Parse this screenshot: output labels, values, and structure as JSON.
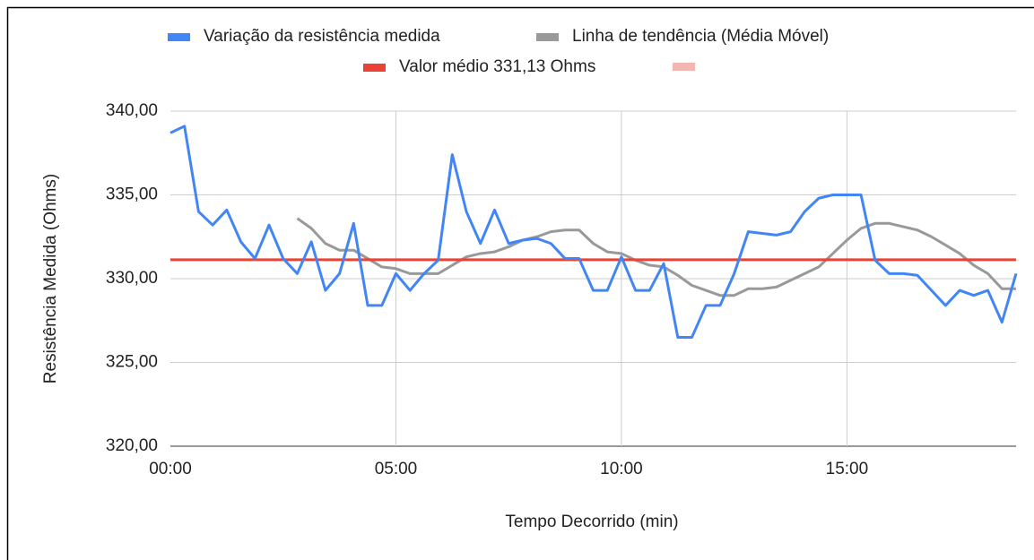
{
  "chart_data": {
    "type": "line",
    "x_label": "Tempo Decorrido (min)",
    "y_label": "Resistência Medida (Ohms)",
    "x": [
      0,
      0.3125,
      0.625,
      0.9375,
      1.25,
      1.5625,
      1.875,
      2.1875,
      2.5,
      2.8125,
      3.125,
      3.4375,
      3.75,
      4.0625,
      4.375,
      4.6875,
      5,
      5.3125,
      5.625,
      5.9375,
      6.25,
      6.5625,
      6.875,
      7.1875,
      7.5,
      7.8125,
      8.125,
      8.4375,
      8.75,
      9.0625,
      9.375,
      9.6875,
      10,
      10.3125,
      10.625,
      10.9375,
      11.25,
      11.5625,
      11.875,
      12.1875,
      12.5,
      12.8125,
      13.125,
      13.4375,
      13.75,
      14.0625,
      14.375,
      14.6875,
      15,
      15.3125,
      15.625,
      15.9375,
      16.25,
      16.5625,
      16.875,
      17.1875,
      17.5,
      17.8125,
      18.125,
      18.4375,
      18.75
    ],
    "series": [
      {
        "name": "Variação da resistência medida",
        "color": "#4285f4",
        "values": [
          338.7,
          339.1,
          334.0,
          333.2,
          334.1,
          332.2,
          331.2,
          333.2,
          331.2,
          330.3,
          332.2,
          329.3,
          330.3,
          333.3,
          328.4,
          328.4,
          330.3,
          329.3,
          330.3,
          331.1,
          337.4,
          334.0,
          332.1,
          334.1,
          332.1,
          332.3,
          332.4,
          332.1,
          331.2,
          331.2,
          329.3,
          329.3,
          331.3,
          329.3,
          329.3,
          330.9,
          326.5,
          326.5,
          328.4,
          328.4,
          330.3,
          332.8,
          332.7,
          332.6,
          332.8,
          334.0,
          334.8,
          335.0,
          335.0,
          335.0,
          331.1,
          330.3,
          330.3,
          330.2,
          329.3,
          328.4,
          329.3,
          329.0,
          329.3,
          327.4,
          330.3
        ]
      },
      {
        "name": "Linha de tendência (Média Móvel)",
        "color": "#999999",
        "values": [
          null,
          null,
          null,
          null,
          null,
          null,
          null,
          null,
          null,
          333.6,
          333.0,
          332.1,
          331.7,
          331.7,
          331.2,
          330.7,
          330.6,
          330.3,
          330.3,
          330.3,
          330.8,
          331.3,
          331.5,
          331.6,
          331.9,
          332.3,
          332.5,
          332.8,
          332.9,
          332.9,
          332.1,
          331.6,
          331.5,
          331.1,
          330.8,
          330.7,
          330.2,
          329.6,
          329.3,
          329.0,
          329.0,
          329.4,
          329.4,
          329.5,
          329.9,
          330.3,
          330.7,
          331.5,
          332.3,
          333.0,
          333.3,
          333.3,
          333.1,
          332.9,
          332.5,
          332.0,
          331.5,
          330.8,
          330.3,
          329.4,
          329.4
        ]
      },
      {
        "name": "Valor médio 331,13 Ohms",
        "color": "#ea4335",
        "values": [
          331.13,
          331.13,
          331.13,
          331.13,
          331.13,
          331.13,
          331.13,
          331.13,
          331.13,
          331.13,
          331.13,
          331.13,
          331.13,
          331.13,
          331.13,
          331.13,
          331.13,
          331.13,
          331.13,
          331.13,
          331.13,
          331.13,
          331.13,
          331.13,
          331.13,
          331.13,
          331.13,
          331.13,
          331.13,
          331.13,
          331.13,
          331.13,
          331.13,
          331.13,
          331.13,
          331.13,
          331.13,
          331.13,
          331.13,
          331.13,
          331.13,
          331.13,
          331.13,
          331.13,
          331.13,
          331.13,
          331.13,
          331.13,
          331.13,
          331.13,
          331.13,
          331.13,
          331.13,
          331.13,
          331.13,
          331.13,
          331.13,
          331.13,
          331.13,
          331.13,
          331.13
        ]
      }
    ],
    "xlim": [
      0,
      18.75
    ],
    "xticks": [
      {
        "value": 0,
        "label": "00:00"
      },
      {
        "value": 5,
        "label": "05:00"
      },
      {
        "value": 10,
        "label": "10:00"
      },
      {
        "value": 15,
        "label": "15:00"
      }
    ],
    "ylim": [
      320,
      340
    ],
    "yticks": [
      {
        "value": 320,
        "label": "320,00"
      },
      {
        "value": 325,
        "label": "325,00"
      },
      {
        "value": 330,
        "label": "330,00"
      },
      {
        "value": 335,
        "label": "335,00"
      },
      {
        "value": 340,
        "label": "340,00"
      }
    ],
    "grid": true,
    "legend": "top"
  }
}
